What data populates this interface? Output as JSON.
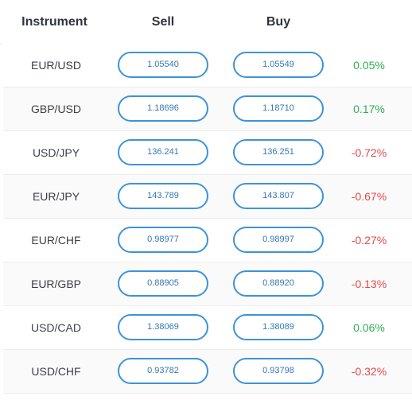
{
  "header": {
    "instrument_label": "Instrument",
    "sell_label": "Sell",
    "buy_label": "Buy"
  },
  "colors": {
    "positive": "#2fae55",
    "negative": "#e34b4b",
    "button_border": "#3d93d8",
    "button_text": "#3477b4"
  },
  "rows": [
    {
      "instrument": "EUR/USD",
      "sell": "1.05540",
      "buy": "1.05549",
      "change": "0.05%",
      "direction": "positive"
    },
    {
      "instrument": "GBP/USD",
      "sell": "1.18696",
      "buy": "1.18710",
      "change": "0.17%",
      "direction": "positive"
    },
    {
      "instrument": "USD/JPY",
      "sell": "136.241",
      "buy": "136.251",
      "change": "-0.72%",
      "direction": "negative"
    },
    {
      "instrument": "EUR/JPY",
      "sell": "143.789",
      "buy": "143.807",
      "change": "-0.67%",
      "direction": "negative"
    },
    {
      "instrument": "EUR/CHF",
      "sell": "0.98977",
      "buy": "0.98997",
      "change": "-0.27%",
      "direction": "negative"
    },
    {
      "instrument": "EUR/GBP",
      "sell": "0.88905",
      "buy": "0.88920",
      "change": "-0.13%",
      "direction": "negative"
    },
    {
      "instrument": "USD/CAD",
      "sell": "1.38069",
      "buy": "1.38089",
      "change": "0.06%",
      "direction": "positive"
    },
    {
      "instrument": "USD/CHF",
      "sell": "0.93782",
      "buy": "0.93798",
      "change": "-0.32%",
      "direction": "negative"
    }
  ]
}
